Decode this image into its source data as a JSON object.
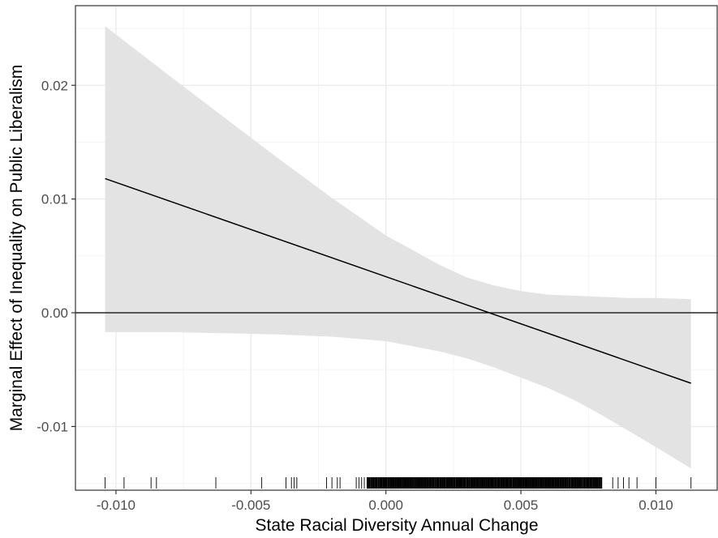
{
  "chart_data": {
    "type": "line",
    "title": "",
    "xlabel": "State Racial Diversity Annual Change",
    "ylabel": "Marginal Effect of Inequality on Public Liberalism",
    "xlim": [
      -0.0115,
      0.0123
    ],
    "ylim": [
      -0.0156,
      0.027
    ],
    "x_ticks": [
      -0.01,
      -0.005,
      0.0,
      0.005,
      0.01
    ],
    "x_tick_labels": [
      "-0.010",
      "-0.005",
      "0.000",
      "0.005",
      "0.010"
    ],
    "y_ticks": [
      -0.01,
      0.0,
      0.01,
      0.02
    ],
    "y_tick_labels": [
      "-0.01",
      "0.00",
      "0.01",
      "0.02"
    ],
    "grid": true,
    "legend": "none",
    "colors": {
      "line": "#000000",
      "ribbon": "#e3e3e3",
      "grid": "#ebebeb",
      "panel_border": "#333333"
    },
    "series": [
      {
        "kind": "estimate_line",
        "x": [
          -0.0104,
          0.0113
        ],
        "y": [
          0.0118,
          -0.0062
        ]
      },
      {
        "kind": "confidence_band",
        "x": [
          -0.0104,
          -0.008,
          -0.006,
          -0.004,
          -0.002,
          0.0,
          0.002,
          0.003,
          0.004,
          0.005,
          0.006,
          0.007,
          0.008,
          0.009,
          0.01,
          0.0113
        ],
        "upper": [
          0.0252,
          0.0208,
          0.0172,
          0.0136,
          0.0101,
          0.0068,
          0.0042,
          0.0031,
          0.0024,
          0.0019,
          0.0016,
          0.0015,
          0.0014,
          0.0013,
          0.0013,
          0.0012
        ],
        "lower": [
          -0.0017,
          -0.0017,
          -0.0018,
          -0.0019,
          -0.0021,
          -0.0025,
          -0.0034,
          -0.004,
          -0.0048,
          -0.0057,
          -0.0066,
          -0.0077,
          -0.009,
          -0.0104,
          -0.0118,
          -0.0137
        ]
      }
    ],
    "reference_line": {
      "y": 0.0
    },
    "rug": {
      "axis": "x",
      "values": [
        -0.0104,
        -0.0097,
        -0.0087,
        -0.0085,
        -0.0063,
        -0.0046,
        -0.0037,
        -0.0035,
        -0.0034,
        -0.0033,
        -0.0022,
        -0.002,
        -0.0018,
        -0.0017,
        -0.0011,
        -0.001,
        -0.0009,
        -0.0008,
        0.0084,
        0.0086,
        0.0088,
        0.009,
        0.0093,
        0.01,
        0.0113
      ],
      "dense_range": [
        -0.0007,
        0.008
      ]
    }
  }
}
